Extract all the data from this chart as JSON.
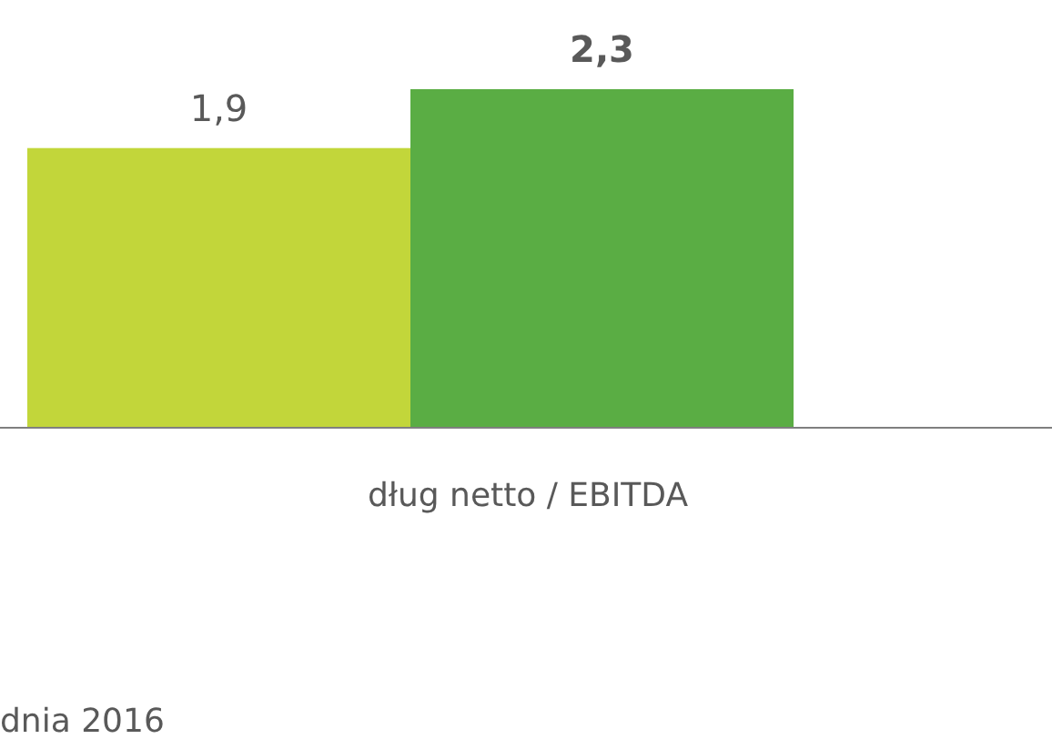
{
  "chart_data": {
    "type": "bar",
    "categories": [
      null,
      null
    ],
    "xlabel": "dług netto / EBITDA",
    "values": [
      1.9,
      2.3
    ],
    "colors": [
      "#c2d63a",
      "#5aad44"
    ],
    "value_labels": [
      "1,9",
      "2,3"
    ],
    "annotations": [
      "dnia 2016"
    ]
  }
}
